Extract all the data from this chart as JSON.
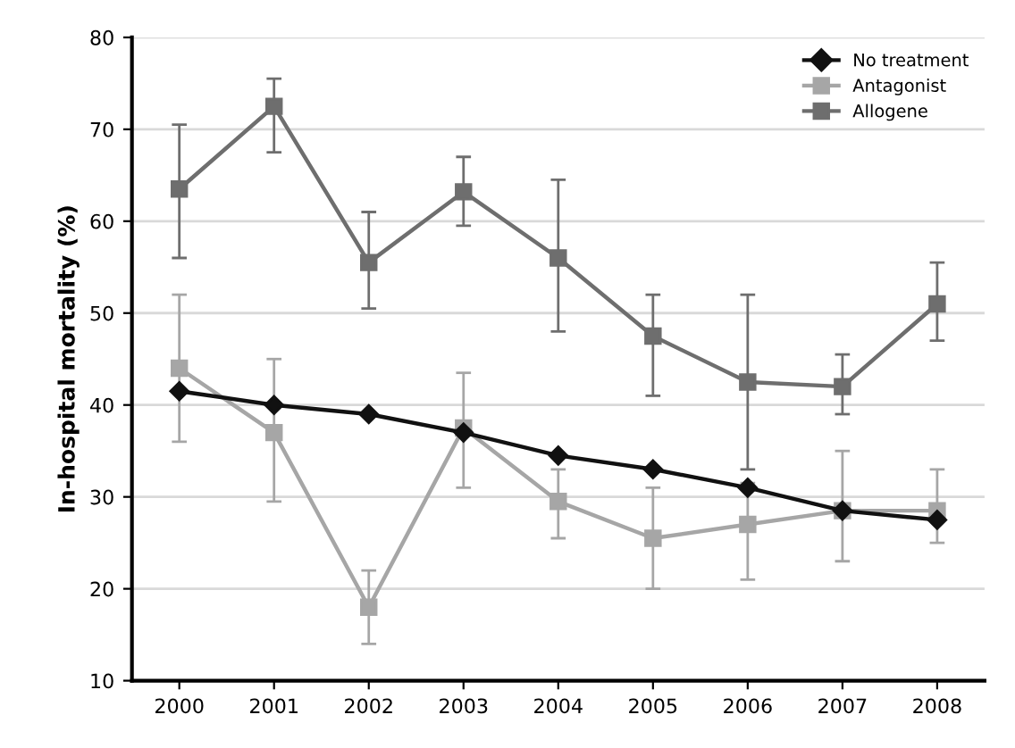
{
  "chart_data": {
    "type": "line",
    "ylabel": "In-hospital mortality (%)",
    "categories": [
      "2000",
      "2001",
      "2002",
      "2003",
      "2004",
      "2005",
      "2006",
      "2007",
      "2008"
    ],
    "series": [
      {
        "name": "No treatment",
        "color": "#111111",
        "marker": "diamond",
        "values": [
          41.5,
          40,
          39,
          37,
          34.5,
          33,
          31,
          28.5,
          27.5
        ]
      },
      {
        "name": "Antagonist",
        "color": "#a6a6a6",
        "marker": "square",
        "values": [
          44,
          37,
          18,
          37.5,
          29.5,
          25.5,
          27,
          28.5,
          28.5
        ],
        "errors": [
          [
            36,
            52
          ],
          [
            29.5,
            45
          ],
          [
            14,
            22
          ],
          [
            31,
            43.5
          ],
          [
            25.5,
            33
          ],
          [
            20,
            31
          ],
          [
            21,
            31.5
          ],
          [
            23,
            35
          ],
          [
            25,
            33
          ]
        ]
      },
      {
        "name": "Allogene",
        "color": "#6e6e6e",
        "marker": "square",
        "values": [
          63.5,
          72.5,
          55.5,
          63.2,
          56,
          47.5,
          42.5,
          42,
          51
        ],
        "errors": [
          [
            56,
            70.5
          ],
          [
            67.5,
            75.5
          ],
          [
            50.5,
            61
          ],
          [
            59.5,
            67
          ],
          [
            48,
            64.5
          ],
          [
            41,
            52
          ],
          [
            33,
            52
          ],
          [
            39,
            45.5
          ],
          [
            47,
            55.5
          ]
        ]
      }
    ],
    "ylim": [
      10,
      80
    ],
    "yticks": [
      10,
      20,
      30,
      40,
      50,
      60,
      70,
      80
    ],
    "grid": "y",
    "legend": "top right",
    "line_style": "solid"
  }
}
